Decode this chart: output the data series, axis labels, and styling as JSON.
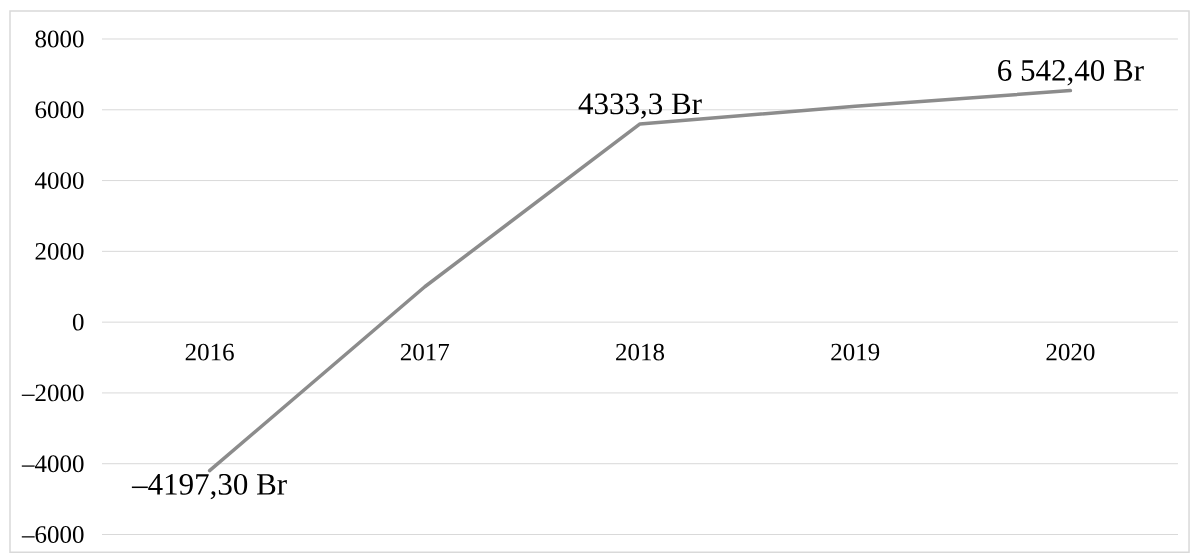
{
  "chart_data": {
    "type": "line",
    "categories": [
      "2016",
      "2017",
      "2018",
      "2019",
      "2020"
    ],
    "series": [
      {
        "color": "#8c8c8c",
        "values": [
          -4197.3,
          1000,
          5600,
          6100,
          6542.4
        ],
        "value_labels": [
          "–4197,30 Br",
          null,
          null,
          null,
          "6 542,40 Br"
        ]
      }
    ],
    "annotations": [
      {
        "text": "4333,3 Br",
        "x": "2018",
        "y": 5600
      }
    ],
    "ylim": [
      -6000,
      8000
    ],
    "yticks": [
      {
        "value": -6000,
        "label": "–6000"
      },
      {
        "value": -4000,
        "label": "–4000"
      },
      {
        "value": -2000,
        "label": "–2000"
      },
      0,
      2000,
      4000,
      6000,
      8000
    ],
    "grid": "y",
    "marker": "none",
    "line_style": "solid"
  }
}
